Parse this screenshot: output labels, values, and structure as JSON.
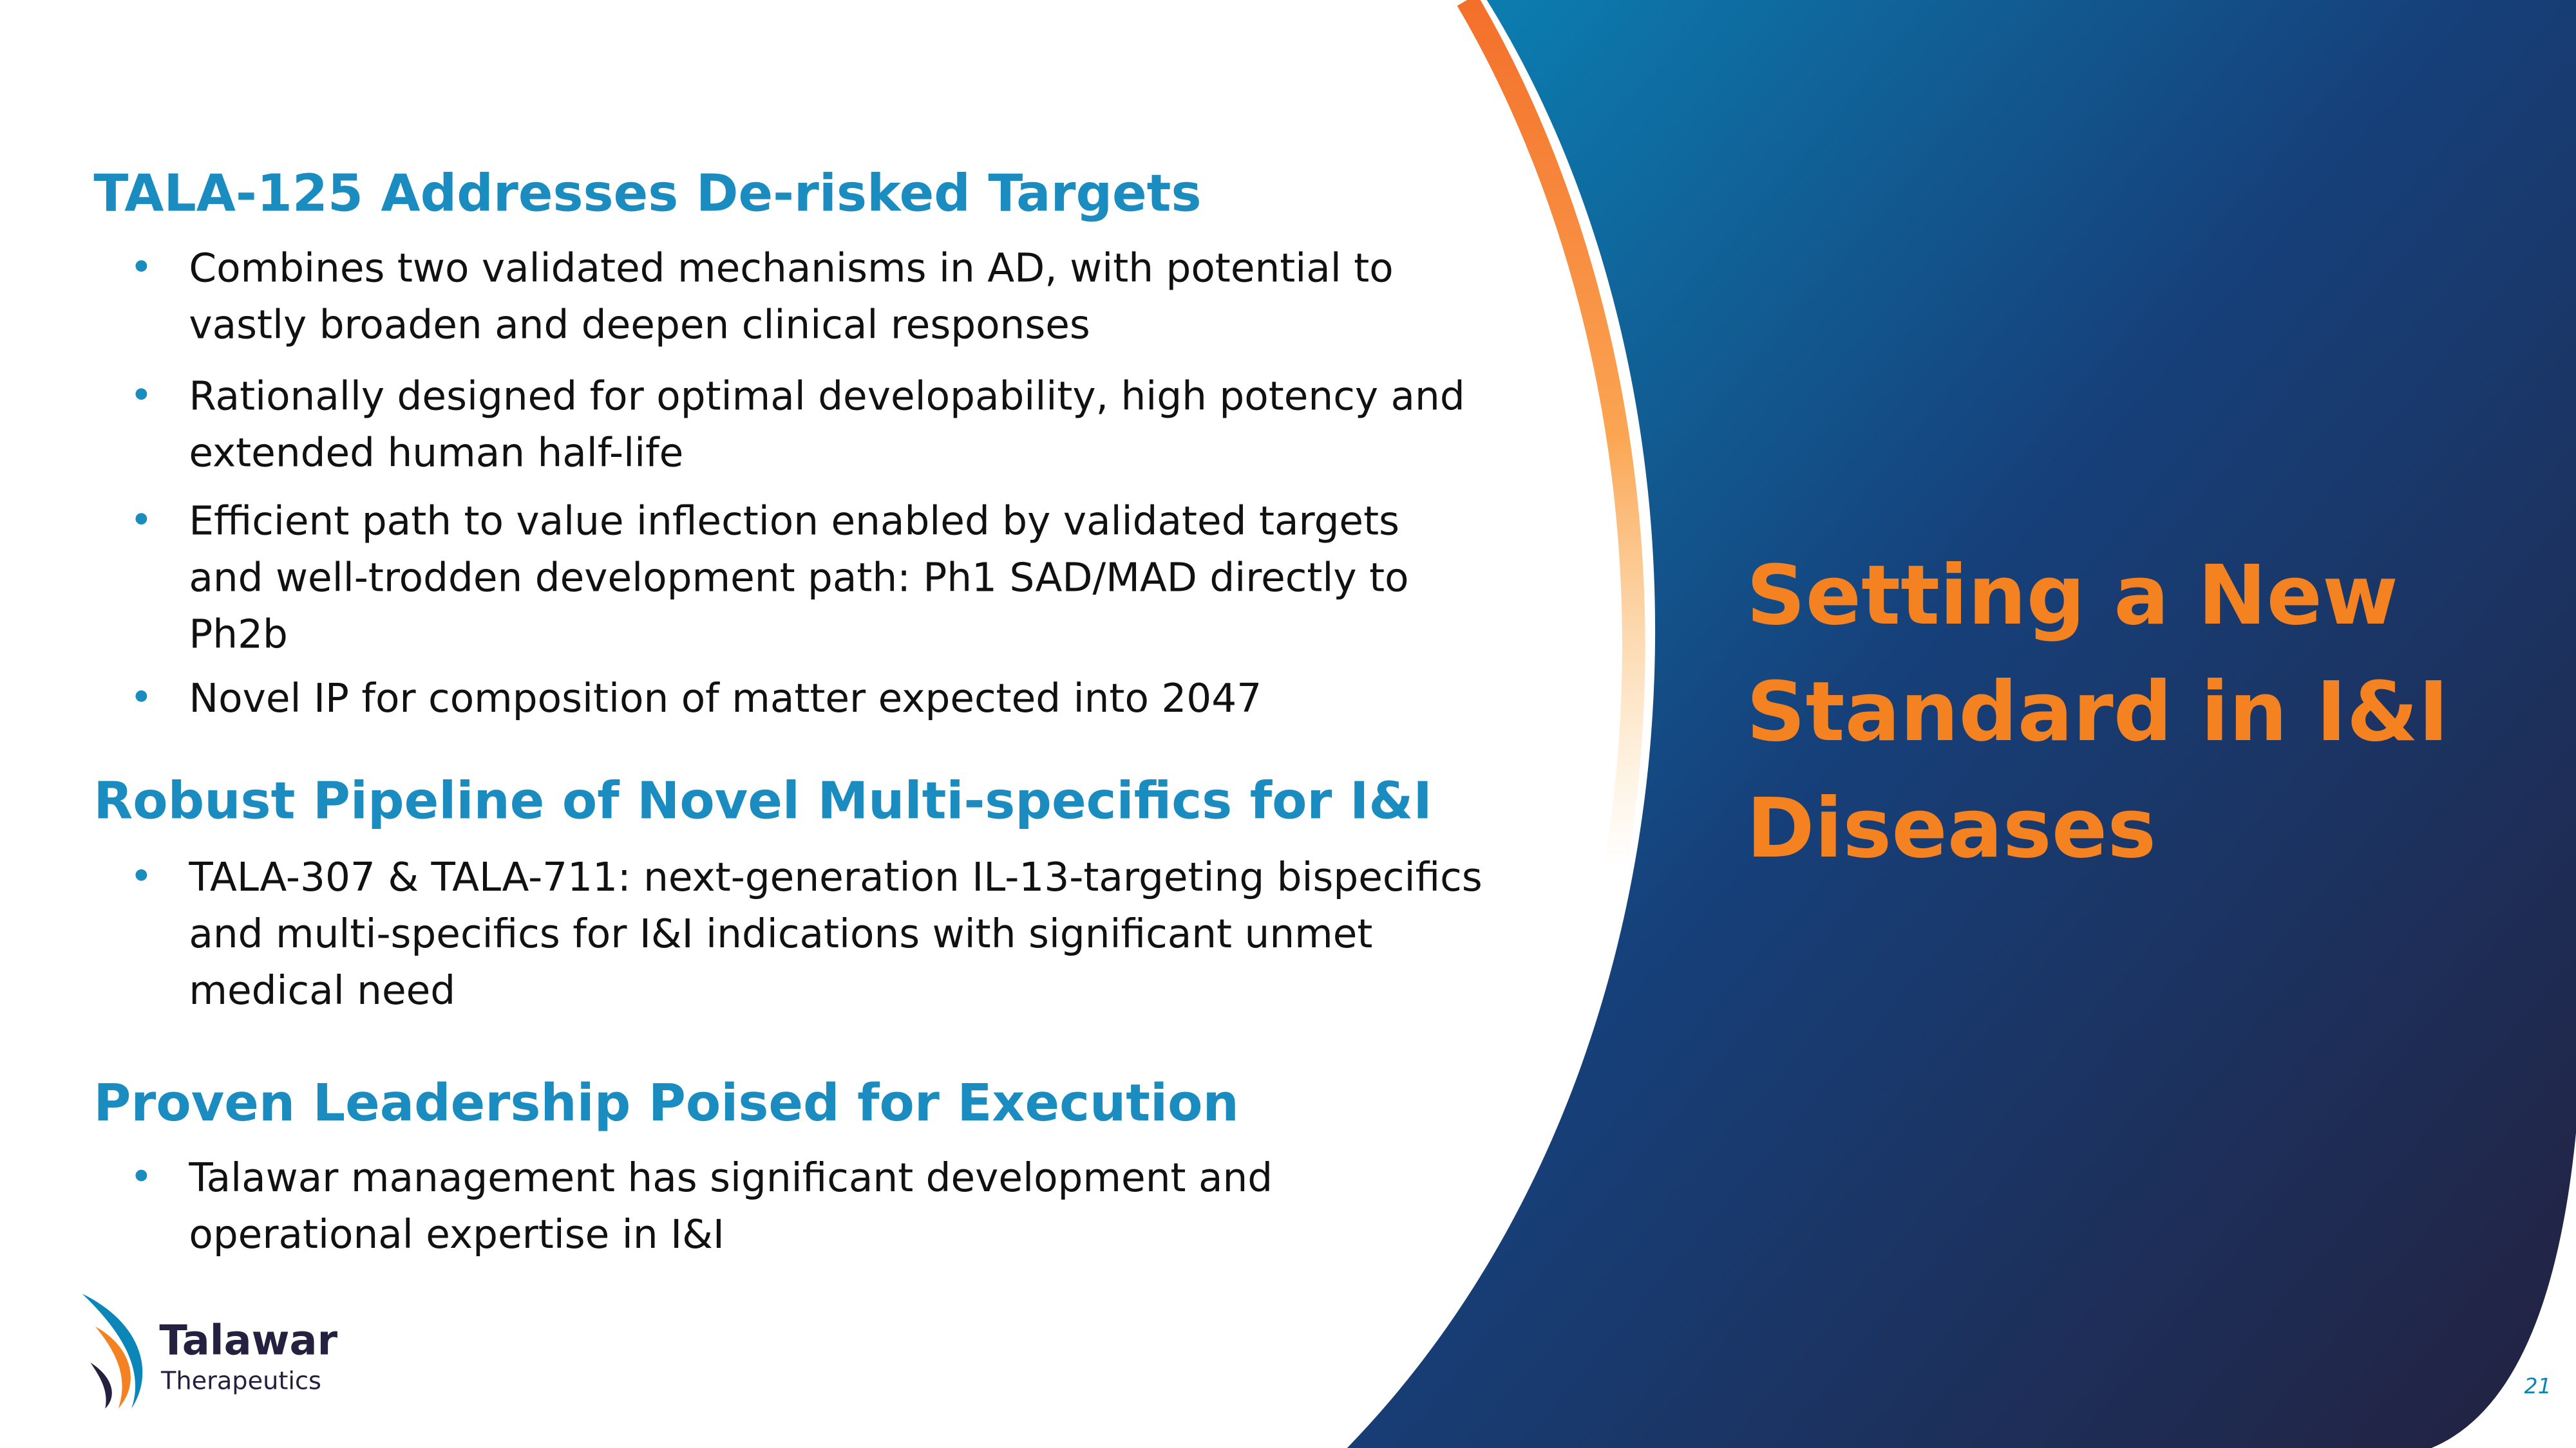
{
  "sections": [
    {
      "heading": "TALA-125 Addresses De-risked Targets",
      "bullets": [
        [
          "Combines two validated mechanisms in AD, with potential to",
          "vastly broaden and deepen clinical responses"
        ],
        [
          "Rationally designed for optimal developability, high potency and",
          "extended human half-life"
        ],
        [
          "Efficient path to value inflection enabled by validated targets",
          "and well-trodden development path: Ph1 SAD/MAD directly to",
          "Ph2b"
        ],
        [
          "Novel IP for composition of matter expected into 2047"
        ]
      ]
    },
    {
      "heading": "Robust Pipeline of Novel Multi-specifics for I&I",
      "bullets": [
        [
          "TALA-307 & TALA-711: next-generation IL-13-targeting bispecifics",
          "and multi-specifics for I&I indications with significant unmet",
          "medical need"
        ]
      ]
    },
    {
      "heading": "Proven Leadership Poised for Execution",
      "bullets": [
        [
          "Talawar management has significant development and",
          "operational expertise in I&I"
        ]
      ]
    }
  ],
  "side_title": [
    "Setting a New",
    "Standard in I&I",
    "Diseases"
  ],
  "logo": {
    "name": "Talawar",
    "tagline": "Therapeutics"
  },
  "page_number": "21"
}
